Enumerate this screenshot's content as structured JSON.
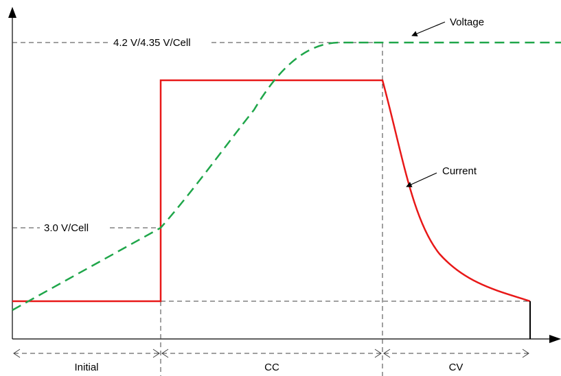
{
  "labels": {
    "voltage": "Voltage",
    "current": "Current",
    "voltage_full": "4.2 V/4.35 V/Cell",
    "voltage_threshold": "3.0 V/Cell"
  },
  "phases": [
    {
      "label": "Initial"
    },
    {
      "label": "CC"
    },
    {
      "label": "CV"
    }
  ],
  "colors": {
    "voltage": "#1fa64a",
    "current": "#e81818",
    "axis": "#000000",
    "guide": "#404040"
  }
}
